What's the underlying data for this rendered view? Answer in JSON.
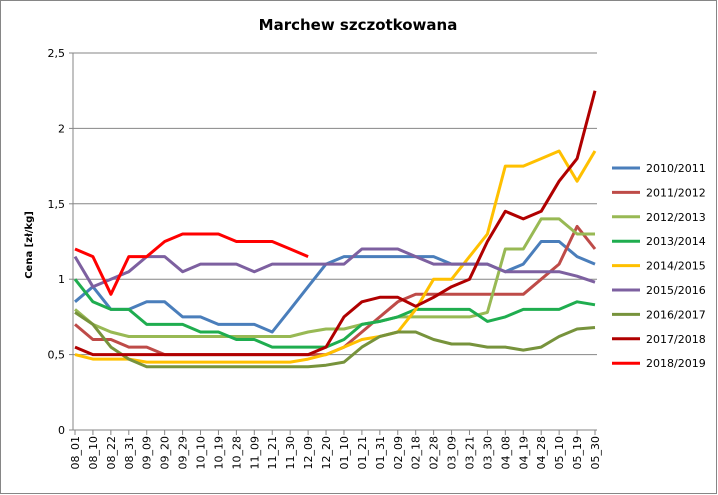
{
  "chart_data": {
    "type": "line",
    "title": "Marchew szczotkowana",
    "y_label": "Cena [zł/kg]",
    "categories": [
      "08_01",
      "08_10",
      "08_22",
      "08_31",
      "09_09",
      "09_20",
      "09_29",
      "10_10",
      "10_19",
      "10_28",
      "11_09",
      "11_21",
      "11_30",
      "12_09",
      "12_20",
      "01_10",
      "01_21",
      "01_31",
      "02_09",
      "02_18",
      "02_28",
      "03_09",
      "03_21",
      "03_30",
      "04_08",
      "04_19",
      "04_28",
      "05_10",
      "05_19",
      "05_30"
    ],
    "ylim": [
      0,
      2.5
    ],
    "yticks": [
      0,
      {
        "value": 0.5,
        "label": "0,5"
      },
      1,
      {
        "value": 1.5,
        "label": "1,5"
      },
      2,
      {
        "value": 2.5,
        "label": "2,5"
      }
    ],
    "grid": true,
    "legend": "right",
    "series": [
      {
        "name": "2010/2011",
        "color": "#4a7ebb",
        "values": [
          0.85,
          0.95,
          0.8,
          0.8,
          0.85,
          0.85,
          0.75,
          0.75,
          0.7,
          0.7,
          0.7,
          0.65,
          0.8,
          0.95,
          1.1,
          1.15,
          1.15,
          1.15,
          1.15,
          1.15,
          1.15,
          1.1,
          1.1,
          1.1,
          1.05,
          1.1,
          1.25,
          1.25,
          1.15,
          1.1
        ]
      },
      {
        "name": "2011/2012",
        "color": "#be4b48",
        "values": [
          0.7,
          0.6,
          0.6,
          0.55,
          0.55,
          0.5,
          0.5,
          0.5,
          0.5,
          0.5,
          0.5,
          0.5,
          0.5,
          0.5,
          0.5,
          0.55,
          0.65,
          0.75,
          0.85,
          0.9,
          0.9,
          0.9,
          0.9,
          0.9,
          0.9,
          0.9,
          1.0,
          1.1,
          1.35,
          1.2
        ]
      },
      {
        "name": "2012/2013",
        "color": "#98b954",
        "values": [
          0.8,
          0.7,
          0.65,
          0.62,
          0.62,
          0.62,
          0.62,
          0.62,
          0.62,
          0.62,
          0.62,
          0.62,
          0.62,
          0.65,
          0.67,
          0.67,
          0.7,
          0.72,
          0.75,
          0.75,
          0.75,
          0.75,
          0.75,
          0.78,
          1.2,
          1.2,
          1.4,
          1.4,
          1.3,
          1.3
        ]
      },
      {
        "name": "2013/2014",
        "color": "#1fad4f",
        "values": [
          1.0,
          0.85,
          0.8,
          0.8,
          0.7,
          0.7,
          0.7,
          0.65,
          0.65,
          0.6,
          0.6,
          0.55,
          0.55,
          0.55,
          0.55,
          0.6,
          0.7,
          0.72,
          0.75,
          0.8,
          0.8,
          0.8,
          0.8,
          0.72,
          0.75,
          0.8,
          0.8,
          0.8,
          0.85,
          0.83
        ]
      },
      {
        "name": "2014/2015",
        "color": "#ffc000",
        "values": [
          0.5,
          0.47,
          0.47,
          0.47,
          0.45,
          0.45,
          0.45,
          0.45,
          0.45,
          0.45,
          0.45,
          0.45,
          0.45,
          0.47,
          0.5,
          0.55,
          0.6,
          0.62,
          0.65,
          0.8,
          1.0,
          1.0,
          1.15,
          1.3,
          1.75,
          1.75,
          1.8,
          1.85,
          1.65,
          1.85
        ]
      },
      {
        "name": "2015/2016",
        "color": "#7d60a0",
        "values": [
          1.15,
          0.95,
          1.0,
          1.05,
          1.15,
          1.15,
          1.05,
          1.1,
          1.1,
          1.1,
          1.05,
          1.1,
          1.1,
          1.1,
          1.1,
          1.1,
          1.2,
          1.2,
          1.2,
          1.15,
          1.1,
          1.1,
          1.1,
          1.1,
          1.05,
          1.05,
          1.05,
          1.05,
          1.02,
          0.98
        ]
      },
      {
        "name": "2016/2017",
        "color": "#77933c",
        "values": [
          0.78,
          0.7,
          0.55,
          0.47,
          0.42,
          0.42,
          0.42,
          0.42,
          0.42,
          0.42,
          0.42,
          0.42,
          0.42,
          0.42,
          0.43,
          0.45,
          0.55,
          0.62,
          0.65,
          0.65,
          0.6,
          0.57,
          0.57,
          0.55,
          0.55,
          0.53,
          0.55,
          0.62,
          0.67,
          0.68
        ]
      },
      {
        "name": "2017/2018",
        "color": "#b00000",
        "values": [
          0.55,
          0.5,
          0.5,
          0.5,
          0.5,
          0.5,
          0.5,
          0.5,
          0.5,
          0.5,
          0.5,
          0.5,
          0.5,
          0.5,
          0.55,
          0.75,
          0.85,
          0.88,
          0.88,
          0.82,
          0.88,
          0.95,
          1.0,
          1.25,
          1.45,
          1.4,
          1.45,
          1.65,
          1.8,
          2.25
        ]
      },
      {
        "name": "2018/2019",
        "color": "#ff0000",
        "values": [
          1.2,
          1.15,
          0.9,
          1.15,
          1.15,
          1.25,
          1.3,
          1.3,
          1.3,
          1.25,
          1.25,
          1.25,
          1.2,
          1.15,
          null,
          null,
          null,
          null,
          null,
          null,
          null,
          null,
          null,
          null,
          null,
          null,
          null,
          null,
          null,
          null
        ]
      }
    ]
  }
}
